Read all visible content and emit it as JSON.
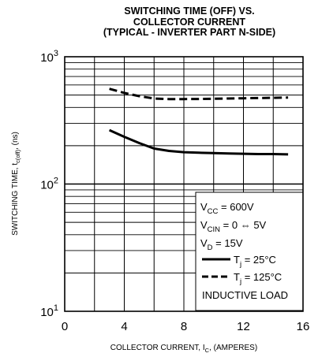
{
  "chart_data": {
    "type": "line",
    "title_lines": [
      "SWITCHING TIME (OFF) VS.",
      "COLLECTOR CURRENT",
      "(TYPICAL - INVERTER PART N-SIDE)"
    ],
    "xlabel": {
      "main": "COLLECTOR CURRENT, I",
      "sub": "C",
      "tail": ", (AMPERES)"
    },
    "ylabel": {
      "main": "SWITCHING TIME, t",
      "sub": "c(off)",
      "tail": ", (ns)"
    },
    "xlim": [
      0,
      16
    ],
    "ylim": [
      10,
      1000
    ],
    "yscale": "log",
    "xticks": [
      "0",
      "4",
      "8",
      "12",
      "16"
    ],
    "yticks": [
      {
        "base": "10",
        "exp": "1"
      },
      {
        "base": "10",
        "exp": "2"
      },
      {
        "base": "10",
        "exp": "3"
      }
    ],
    "grid": true,
    "series": [
      {
        "name": "T_j = 25°C",
        "style": "solid",
        "color": "#000000",
        "x": [
          3,
          4,
          5,
          6,
          7,
          8,
          9,
          10,
          11,
          12,
          13,
          14,
          15
        ],
        "y": [
          265,
          235,
          210,
          190,
          182,
          178,
          176,
          175,
          174,
          173,
          172,
          172,
          171
        ]
      },
      {
        "name": "T_j = 125°C",
        "style": "dashed",
        "color": "#000000",
        "x": [
          3,
          4,
          5,
          6,
          7,
          8,
          9,
          10,
          11,
          12,
          13,
          14,
          15
        ],
        "y": [
          560,
          520,
          490,
          470,
          465,
          465,
          466,
          468,
          470,
          472,
          474,
          476,
          478
        ]
      }
    ],
    "legend": {
      "position": "bottom-right",
      "conditions": [
        {
          "main": "V",
          "sub": "CC",
          "tail": " = 600V"
        },
        {
          "main": "V",
          "sub": "CIN",
          "tail": " = 0 ⇔ 5V"
        },
        {
          "main": "V",
          "sub": "D",
          "tail": " = 15V"
        }
      ],
      "entries": [
        {
          "main": "T",
          "sub": "j",
          "tail": " = 25°C"
        },
        {
          "main": "T",
          "sub": "j",
          "tail": " = 125°C"
        }
      ],
      "note": "INDUCTIVE LOAD"
    }
  }
}
